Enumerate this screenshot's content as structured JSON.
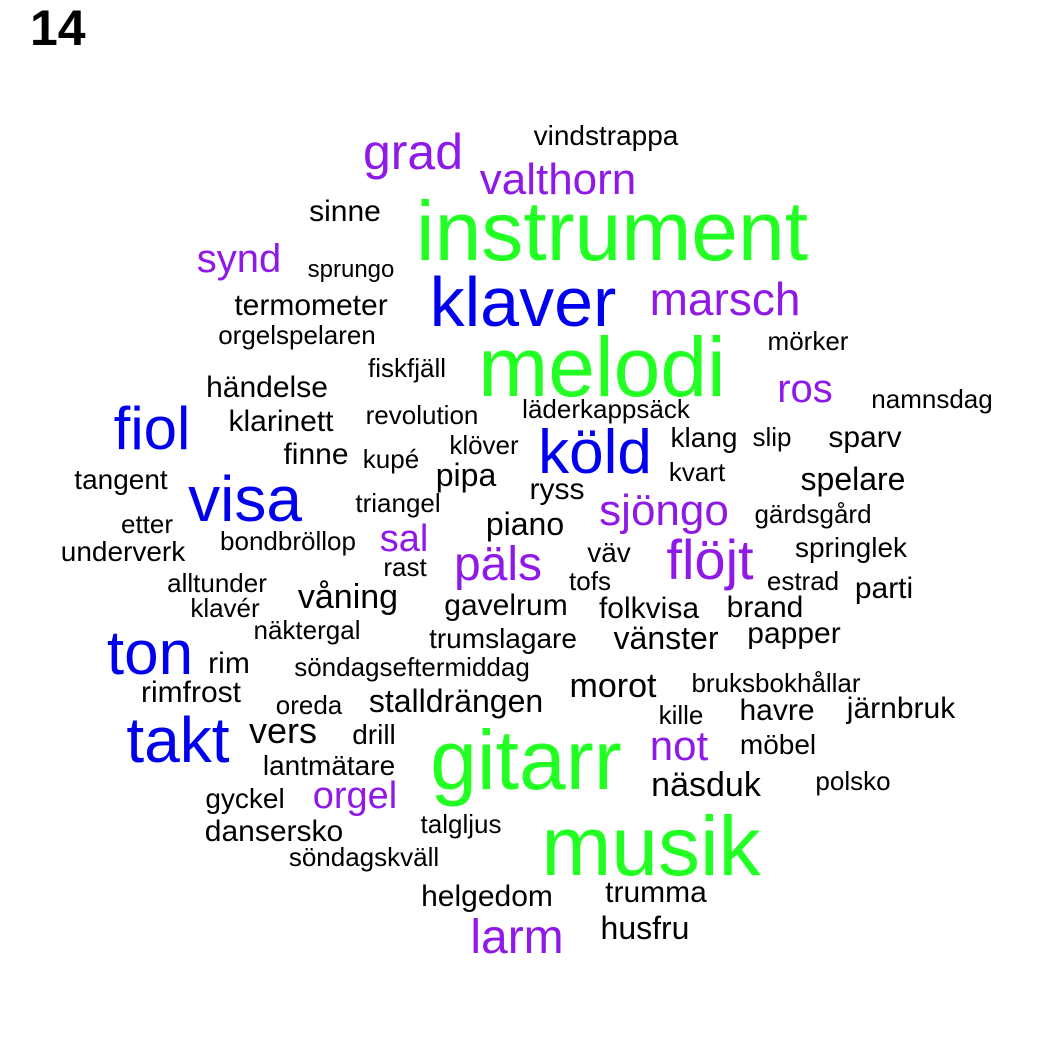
{
  "panel_label": "14",
  "colors": {
    "green": "#22ff22",
    "blue": "#0000ee",
    "purple": "#8f1ae8",
    "black": "#000000"
  },
  "words": [
    {
      "text": "instrument",
      "color": "green"
    },
    {
      "text": "melodi",
      "color": "green"
    },
    {
      "text": "gitarr",
      "color": "green"
    },
    {
      "text": "musik",
      "color": "green"
    },
    {
      "text": "klaver",
      "color": "blue"
    },
    {
      "text": "fiol",
      "color": "blue"
    },
    {
      "text": "visa",
      "color": "blue"
    },
    {
      "text": "köld",
      "color": "blue"
    },
    {
      "text": "ton",
      "color": "blue"
    },
    {
      "text": "takt",
      "color": "blue"
    },
    {
      "text": "grad",
      "color": "purple"
    },
    {
      "text": "valthorn",
      "color": "purple"
    },
    {
      "text": "synd",
      "color": "purple"
    },
    {
      "text": "marsch",
      "color": "purple"
    },
    {
      "text": "ros",
      "color": "purple"
    },
    {
      "text": "sjöngo",
      "color": "purple"
    },
    {
      "text": "sal",
      "color": "purple"
    },
    {
      "text": "päls",
      "color": "purple"
    },
    {
      "text": "flöjt",
      "color": "purple"
    },
    {
      "text": "not",
      "color": "purple"
    },
    {
      "text": "orgel",
      "color": "purple"
    },
    {
      "text": "larm",
      "color": "purple"
    },
    {
      "text": "vindstrappa",
      "color": "black"
    },
    {
      "text": "sinne",
      "color": "black"
    },
    {
      "text": "sprungo",
      "color": "black"
    },
    {
      "text": "termometer",
      "color": "black"
    },
    {
      "text": "orgelspelaren",
      "color": "black"
    },
    {
      "text": "mörker",
      "color": "black"
    },
    {
      "text": "fiskfjäll",
      "color": "black"
    },
    {
      "text": "händelse",
      "color": "black"
    },
    {
      "text": "namnsdag",
      "color": "black"
    },
    {
      "text": "klarinett",
      "color": "black"
    },
    {
      "text": "revolution",
      "color": "black"
    },
    {
      "text": "läderkappsäck",
      "color": "black"
    },
    {
      "text": "klang",
      "color": "black"
    },
    {
      "text": "slip",
      "color": "black"
    },
    {
      "text": "sparv",
      "color": "black"
    },
    {
      "text": "finne",
      "color": "black"
    },
    {
      "text": "kupé",
      "color": "black"
    },
    {
      "text": "klöver",
      "color": "black"
    },
    {
      "text": "kvart",
      "color": "black"
    },
    {
      "text": "tangent",
      "color": "black"
    },
    {
      "text": "pipa",
      "color": "black"
    },
    {
      "text": "ryss",
      "color": "black"
    },
    {
      "text": "spelare",
      "color": "black"
    },
    {
      "text": "triangel",
      "color": "black"
    },
    {
      "text": "gärdsgård",
      "color": "black"
    },
    {
      "text": "etter",
      "color": "black"
    },
    {
      "text": "piano",
      "color": "black"
    },
    {
      "text": "underverk",
      "color": "black"
    },
    {
      "text": "bondbröllop",
      "color": "black"
    },
    {
      "text": "väv",
      "color": "black"
    },
    {
      "text": "springlek",
      "color": "black"
    },
    {
      "text": "rast",
      "color": "black"
    },
    {
      "text": "tofs",
      "color": "black"
    },
    {
      "text": "estrad",
      "color": "black"
    },
    {
      "text": "alltunder",
      "color": "black"
    },
    {
      "text": "parti",
      "color": "black"
    },
    {
      "text": "våning",
      "color": "black"
    },
    {
      "text": "klavér",
      "color": "black"
    },
    {
      "text": "gavelrum",
      "color": "black"
    },
    {
      "text": "folkvisa",
      "color": "black"
    },
    {
      "text": "brand",
      "color": "black"
    },
    {
      "text": "näktergal",
      "color": "black"
    },
    {
      "text": "papper",
      "color": "black"
    },
    {
      "text": "trumslagare",
      "color": "black"
    },
    {
      "text": "vänster",
      "color": "black"
    },
    {
      "text": "rim",
      "color": "black"
    },
    {
      "text": "söndagseftermiddag",
      "color": "black"
    },
    {
      "text": "rimfrost",
      "color": "black"
    },
    {
      "text": "morot",
      "color": "black"
    },
    {
      "text": "bruksbokhållar",
      "color": "black"
    },
    {
      "text": "oreda",
      "color": "black"
    },
    {
      "text": "stalldrängen",
      "color": "black"
    },
    {
      "text": "järnbruk",
      "color": "black"
    },
    {
      "text": "kille",
      "color": "black"
    },
    {
      "text": "havre",
      "color": "black"
    },
    {
      "text": "vers",
      "color": "black"
    },
    {
      "text": "drill",
      "color": "black"
    },
    {
      "text": "möbel",
      "color": "black"
    },
    {
      "text": "lantmätare",
      "color": "black"
    },
    {
      "text": "polsko",
      "color": "black"
    },
    {
      "text": "gyckel",
      "color": "black"
    },
    {
      "text": "näsduk",
      "color": "black"
    },
    {
      "text": "dansersko",
      "color": "black"
    },
    {
      "text": "talgljus",
      "color": "black"
    },
    {
      "text": "söndagskväll",
      "color": "black"
    },
    {
      "text": "trumma",
      "color": "black"
    },
    {
      "text": "helgedom",
      "color": "black"
    },
    {
      "text": "husfru",
      "color": "black"
    }
  ]
}
